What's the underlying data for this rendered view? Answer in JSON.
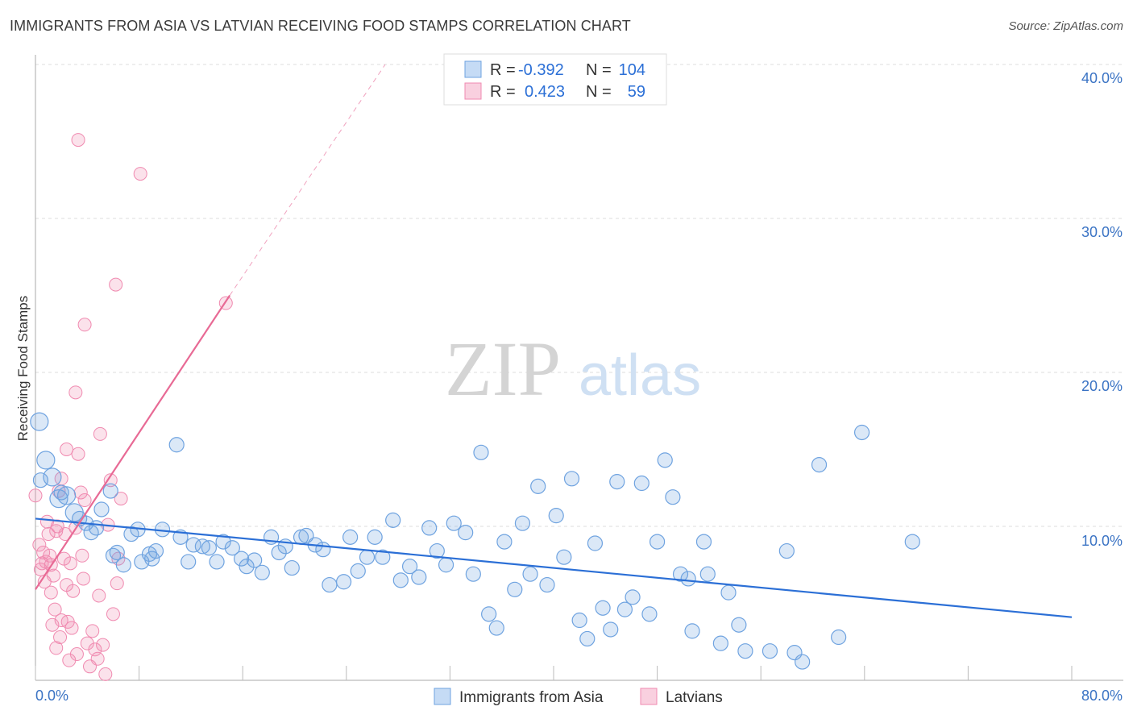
{
  "title": "IMMIGRANTS FROM ASIA VS LATVIAN RECEIVING FOOD STAMPS CORRELATION CHART",
  "source": "Source: ZipAtlas.com",
  "watermark": {
    "zip": "ZIP",
    "atlas": "atlas"
  },
  "legend": {
    "series1": {
      "r_label": "R =",
      "r_value": "-0.392",
      "n_label": "N =",
      "n_value": "104"
    },
    "series2": {
      "r_label": "R =",
      "r_value": "0.423",
      "n_label": "N =",
      "n_value": "59"
    }
  },
  "colors": {
    "blue": "#6fa3e0",
    "blue_line": "#2b6fd6",
    "pink": "#f08ab0",
    "pink_line": "#e86a95",
    "text_blue": "#3a73c4"
  },
  "chart_data": {
    "type": "scatter",
    "title": "IMMIGRANTS FROM ASIA VS LATVIAN RECEIVING FOOD STAMPS CORRELATION CHART",
    "xlabel": "",
    "ylabel": "Receiving Food Stamps",
    "xlim": [
      0,
      80
    ],
    "ylim": [
      0,
      40
    ],
    "x_tick_labels": [
      "0.0%",
      "80.0%"
    ],
    "y_tick_labels": [
      "10.0%",
      "20.0%",
      "30.0%",
      "40.0%"
    ],
    "y_ticks": [
      10,
      20,
      30,
      40
    ],
    "legend_position": "bottom-center",
    "series": [
      {
        "name": "Immigrants from Asia",
        "color": "#6fa3e0",
        "trend": {
          "x": [
            0,
            80
          ],
          "y": [
            10.5,
            4.1
          ]
        },
        "points": [
          [
            0.3,
            16.8
          ],
          [
            0.8,
            14.3
          ],
          [
            1.3,
            13.2
          ],
          [
            1.8,
            11.8
          ],
          [
            2.4,
            12.0
          ],
          [
            3.0,
            10.9
          ],
          [
            3.4,
            10.5
          ],
          [
            3.9,
            10.2
          ],
          [
            4.3,
            9.6
          ],
          [
            5.1,
            11.1
          ],
          [
            5.8,
            12.3
          ],
          [
            6.3,
            8.3
          ],
          [
            6.8,
            7.5
          ],
          [
            7.4,
            9.5
          ],
          [
            7.9,
            9.8
          ],
          [
            8.2,
            7.7
          ],
          [
            8.8,
            8.2
          ],
          [
            9.3,
            8.4
          ],
          [
            9.8,
            9.8
          ],
          [
            10.9,
            15.3
          ],
          [
            11.2,
            9.3
          ],
          [
            11.8,
            7.7
          ],
          [
            12.2,
            8.8
          ],
          [
            12.9,
            8.7
          ],
          [
            13.4,
            8.6
          ],
          [
            14.0,
            7.7
          ],
          [
            14.5,
            9.0
          ],
          [
            15.2,
            8.6
          ],
          [
            15.9,
            7.9
          ],
          [
            16.3,
            7.4
          ],
          [
            16.9,
            7.8
          ],
          [
            17.5,
            7.0
          ],
          [
            18.2,
            9.3
          ],
          [
            18.8,
            8.3
          ],
          [
            19.3,
            8.7
          ],
          [
            19.8,
            7.3
          ],
          [
            20.5,
            9.3
          ],
          [
            20.9,
            9.4
          ],
          [
            21.6,
            8.8
          ],
          [
            22.2,
            8.5
          ],
          [
            22.7,
            6.2
          ],
          [
            23.8,
            6.4
          ],
          [
            24.3,
            9.3
          ],
          [
            24.9,
            7.1
          ],
          [
            25.6,
            8.0
          ],
          [
            26.2,
            9.3
          ],
          [
            26.8,
            8.0
          ],
          [
            27.6,
            10.4
          ],
          [
            28.2,
            6.5
          ],
          [
            28.9,
            7.4
          ],
          [
            29.6,
            6.7
          ],
          [
            30.4,
            9.9
          ],
          [
            31.0,
            8.4
          ],
          [
            31.7,
            7.5
          ],
          [
            32.3,
            10.2
          ],
          [
            33.2,
            9.6
          ],
          [
            33.8,
            6.9
          ],
          [
            34.4,
            14.8
          ],
          [
            35.0,
            4.3
          ],
          [
            35.6,
            3.4
          ],
          [
            36.2,
            9.0
          ],
          [
            37.0,
            5.9
          ],
          [
            37.6,
            10.2
          ],
          [
            38.2,
            6.9
          ],
          [
            38.8,
            12.6
          ],
          [
            39.5,
            6.2
          ],
          [
            40.2,
            10.7
          ],
          [
            40.8,
            8.0
          ],
          [
            41.4,
            13.1
          ],
          [
            42.0,
            3.9
          ],
          [
            42.6,
            2.7
          ],
          [
            43.2,
            8.9
          ],
          [
            43.8,
            4.7
          ],
          [
            44.4,
            3.3
          ],
          [
            44.9,
            12.9
          ],
          [
            45.5,
            4.6
          ],
          [
            46.1,
            5.4
          ],
          [
            46.8,
            12.8
          ],
          [
            47.4,
            4.3
          ],
          [
            48.0,
            9.0
          ],
          [
            48.6,
            14.3
          ],
          [
            49.2,
            11.9
          ],
          [
            49.8,
            6.9
          ],
          [
            50.4,
            6.6
          ],
          [
            50.7,
            3.2
          ],
          [
            51.6,
            9.0
          ],
          [
            51.9,
            6.9
          ],
          [
            52.9,
            2.4
          ],
          [
            53.5,
            5.7
          ],
          [
            54.3,
            3.6
          ],
          [
            54.8,
            1.9
          ],
          [
            56.7,
            1.9
          ],
          [
            58.0,
            8.4
          ],
          [
            58.6,
            1.8
          ],
          [
            59.2,
            1.2
          ],
          [
            60.5,
            14.0
          ],
          [
            62.0,
            2.8
          ],
          [
            63.8,
            16.1
          ],
          [
            67.7,
            9.0
          ],
          [
            0.4,
            13.0
          ],
          [
            2.0,
            12.2
          ],
          [
            4.7,
            9.9
          ],
          [
            6.0,
            8.1
          ],
          [
            9.0,
            7.9
          ]
        ]
      },
      {
        "name": "Latvians",
        "color": "#f08ab0",
        "trend": {
          "x": [
            0,
            15
          ],
          "y": [
            5.9,
            25.0
          ]
        },
        "trend_dashed": {
          "x": [
            15,
            27
          ],
          "y": [
            25.0,
            40.0
          ]
        },
        "points": [
          [
            0.0,
            12.0
          ],
          [
            0.3,
            8.8
          ],
          [
            0.5,
            7.6
          ],
          [
            0.6,
            8.3
          ],
          [
            0.7,
            6.4
          ],
          [
            0.8,
            7.7
          ],
          [
            0.9,
            10.3
          ],
          [
            1.0,
            9.5
          ],
          [
            1.1,
            8.1
          ],
          [
            1.2,
            7.5
          ],
          [
            1.3,
            3.6
          ],
          [
            1.4,
            6.8
          ],
          [
            1.5,
            4.6
          ],
          [
            1.6,
            9.7
          ],
          [
            1.7,
            10.0
          ],
          [
            1.8,
            12.3
          ],
          [
            1.9,
            2.8
          ],
          [
            2.0,
            3.9
          ],
          [
            2.2,
            7.9
          ],
          [
            2.3,
            9.5
          ],
          [
            2.4,
            6.2
          ],
          [
            2.5,
            3.8
          ],
          [
            2.6,
            1.3
          ],
          [
            2.7,
            7.6
          ],
          [
            2.9,
            5.8
          ],
          [
            3.1,
            9.9
          ],
          [
            3.3,
            14.7
          ],
          [
            3.5,
            12.2
          ],
          [
            3.6,
            8.1
          ],
          [
            3.8,
            11.7
          ],
          [
            4.0,
            2.4
          ],
          [
            4.2,
            0.9
          ],
          [
            4.4,
            3.2
          ],
          [
            4.6,
            2.0
          ],
          [
            4.8,
            1.4
          ],
          [
            5.0,
            16.0
          ],
          [
            5.2,
            2.3
          ],
          [
            5.4,
            0.4
          ],
          [
            5.6,
            10.1
          ],
          [
            5.8,
            13.0
          ],
          [
            6.0,
            4.3
          ],
          [
            6.2,
            25.7
          ],
          [
            6.4,
            7.9
          ],
          [
            6.6,
            11.8
          ],
          [
            8.1,
            32.9
          ],
          [
            3.3,
            35.1
          ],
          [
            3.8,
            23.1
          ],
          [
            3.1,
            18.7
          ],
          [
            14.7,
            24.5
          ],
          [
            2.4,
            15.0
          ],
          [
            1.2,
            5.7
          ],
          [
            2.8,
            3.4
          ],
          [
            3.2,
            1.7
          ],
          [
            4.9,
            5.5
          ],
          [
            0.4,
            7.2
          ],
          [
            1.6,
            2.1
          ],
          [
            2.0,
            13.1
          ],
          [
            6.3,
            6.3
          ],
          [
            3.7,
            6.6
          ]
        ]
      }
    ]
  },
  "bottom_legend": {
    "item1": "Immigrants from Asia",
    "item2": "Latvians"
  }
}
